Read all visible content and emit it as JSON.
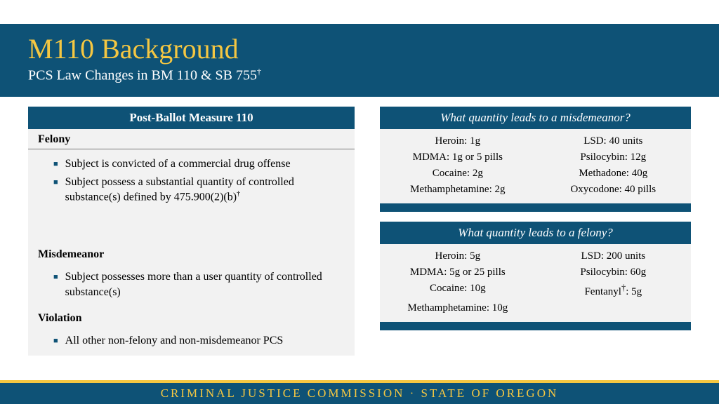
{
  "header": {
    "title": "M110 Background",
    "subtitle_html": "PCS Law Changes in BM 110 & SB 755†"
  },
  "left_panel": {
    "header": "Post-Ballot Measure 110",
    "sections": [
      {
        "label": "Felony",
        "bullets": [
          "Subject is convicted of a commercial drug offense",
          "Subject possess a substantial quantity of controlled substance(s) defined by 475.900(2)(b)†"
        ],
        "has_spacer_after": true
      },
      {
        "label": "Misdemeanor",
        "bullets": [
          "Subject possesses more than a user quantity of controlled substance(s)"
        ]
      },
      {
        "label": "Violation",
        "bullets": [
          "All other non-felony and non-misdemeanor PCS"
        ]
      }
    ]
  },
  "right_panels": [
    {
      "header": "What quantity leads to a misdemeanor?",
      "rows": [
        [
          "Heroin: 1g",
          "LSD: 40 units"
        ],
        [
          "MDMA: 1g or 5 pills",
          "Psilocybin: 12g"
        ],
        [
          "Cocaine: 2g",
          "Methadone: 40g"
        ],
        [
          "Methamphetamine: 2g",
          "Oxycodone: 40 pills"
        ]
      ]
    },
    {
      "header": "What quantity leads to a felony?",
      "rows": [
        [
          "Heroin: 5g",
          "LSD: 200 units"
        ],
        [
          "MDMA: 5g or 25 pills",
          "Psilocybin: 60g"
        ],
        [
          "Cocaine: 10g",
          "Fentanyl†: 5g"
        ],
        [
          "Methamphetamine: 10g",
          ""
        ]
      ]
    }
  ],
  "footer": {
    "text": "CRIMINAL JUSTICE COMMISSION · STATE OF OREGON"
  },
  "colors": {
    "brand_blue": "#0e5276",
    "brand_gold": "#f5c742",
    "panel_bg": "#f2f2f2"
  }
}
